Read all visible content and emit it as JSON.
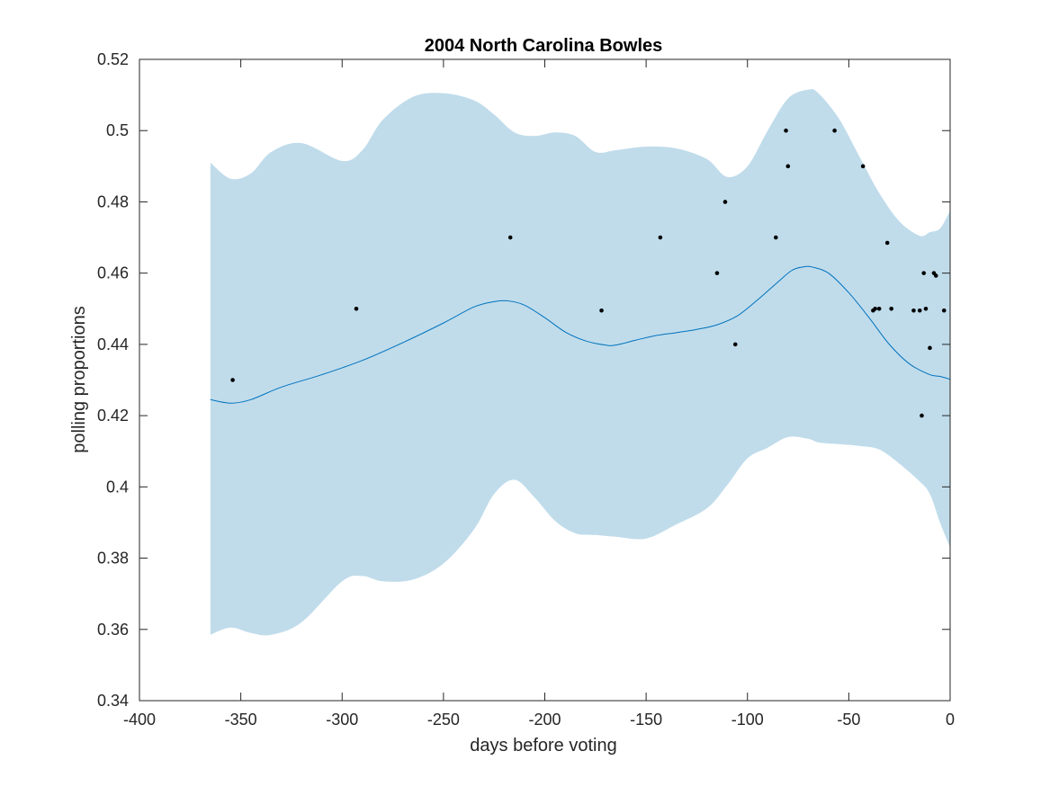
{
  "chart_data": {
    "type": "line",
    "title": "2004 North Carolina Bowles",
    "xlabel": "days before voting",
    "ylabel": "polling proportions",
    "xlim": [
      -400,
      0
    ],
    "ylim": [
      0.34,
      0.52
    ],
    "xticks": [
      -400,
      -350,
      -300,
      -250,
      -200,
      -150,
      -100,
      -50,
      0
    ],
    "xtick_labels": [
      "-400",
      "-350",
      "-300",
      "-250",
      "-200",
      "-150",
      "-100",
      "-50",
      "0"
    ],
    "yticks": [
      0.34,
      0.36,
      0.38,
      0.4,
      0.42,
      0.44,
      0.46,
      0.48,
      0.5,
      0.52
    ],
    "ytick_labels": [
      "0.34",
      "0.36",
      "0.38",
      "0.4",
      "0.42",
      "0.44",
      "0.46",
      "0.48",
      "0.5",
      "0.52"
    ],
    "grid": false,
    "colors": {
      "band": "#c0dceb",
      "line": "#0072bd",
      "points": "#000000",
      "axis": "#262626"
    },
    "band": {
      "x": [
        -365,
        -355,
        -345,
        -335,
        -320,
        -300,
        -290,
        -280,
        -265,
        -250,
        -235,
        -225,
        -215,
        -205,
        -195,
        -185,
        -175,
        -165,
        -150,
        -135,
        -120,
        -110,
        -100,
        -90,
        -80,
        -70,
        -65,
        -55,
        -45,
        -35,
        -25,
        -15,
        -10,
        -5,
        0
      ],
      "upper": [
        0.491,
        0.4865,
        0.488,
        0.494,
        0.4965,
        0.4915,
        0.4945,
        0.503,
        0.5095,
        0.5105,
        0.5085,
        0.5045,
        0.4995,
        0.4985,
        0.4995,
        0.4985,
        0.494,
        0.4945,
        0.4955,
        0.495,
        0.492,
        0.487,
        0.49,
        0.5,
        0.509,
        0.5115,
        0.5105,
        0.5035,
        0.493,
        0.4825,
        0.4745,
        0.4705,
        0.4715,
        0.4725,
        0.4775
      ],
      "lower": [
        0.3585,
        0.3605,
        0.359,
        0.3585,
        0.362,
        0.3735,
        0.375,
        0.3735,
        0.374,
        0.3785,
        0.388,
        0.398,
        0.402,
        0.397,
        0.3905,
        0.387,
        0.3865,
        0.386,
        0.3855,
        0.3895,
        0.394,
        0.4005,
        0.408,
        0.411,
        0.414,
        0.4135,
        0.4125,
        0.412,
        0.4115,
        0.4105,
        0.4065,
        0.4015,
        0.398,
        0.39,
        0.383
      ]
    },
    "series": [
      {
        "x": [
          -365,
          -355,
          -345,
          -330,
          -310,
          -290,
          -270,
          -250,
          -235,
          -225,
          -218,
          -210,
          -200,
          -190,
          -180,
          -170,
          -165,
          -155,
          -145,
          -135,
          -125,
          -115,
          -105,
          -95,
          -85,
          -78,
          -72,
          -68,
          -60,
          -50,
          -40,
          -30,
          -20,
          -10,
          -5,
          0
        ],
        "y": [
          0.4245,
          0.4235,
          0.4245,
          0.428,
          0.4315,
          0.4355,
          0.4405,
          0.446,
          0.4505,
          0.452,
          0.4522,
          0.451,
          0.4475,
          0.4435,
          0.441,
          0.4398,
          0.4398,
          0.4412,
          0.4425,
          0.4433,
          0.4442,
          0.4455,
          0.448,
          0.4525,
          0.4575,
          0.4608,
          0.4618,
          0.4617,
          0.46,
          0.4545,
          0.4475,
          0.44,
          0.4345,
          0.4315,
          0.431,
          0.4302
        ]
      }
    ],
    "points": [
      [
        -354,
        0.43
      ],
      [
        -293,
        0.45
      ],
      [
        -217,
        0.47
      ],
      [
        -172,
        0.4495
      ],
      [
        -143,
        0.47
      ],
      [
        -115,
        0.46
      ],
      [
        -111,
        0.48
      ],
      [
        -106,
        0.44
      ],
      [
        -86,
        0.47
      ],
      [
        -81,
        0.5
      ],
      [
        -80,
        0.49
      ],
      [
        -57,
        0.5
      ],
      [
        -43,
        0.49
      ],
      [
        -38,
        0.4495
      ],
      [
        -37,
        0.45
      ],
      [
        -35,
        0.45
      ],
      [
        -31,
        0.4685
      ],
      [
        -29,
        0.45
      ],
      [
        -18,
        0.4495
      ],
      [
        -15,
        0.4495
      ],
      [
        -14,
        0.42
      ],
      [
        -13,
        0.46
      ],
      [
        -12,
        0.45
      ],
      [
        -10,
        0.439
      ],
      [
        -8,
        0.46
      ],
      [
        -7,
        0.4593
      ],
      [
        -3,
        0.4495
      ]
    ]
  }
}
